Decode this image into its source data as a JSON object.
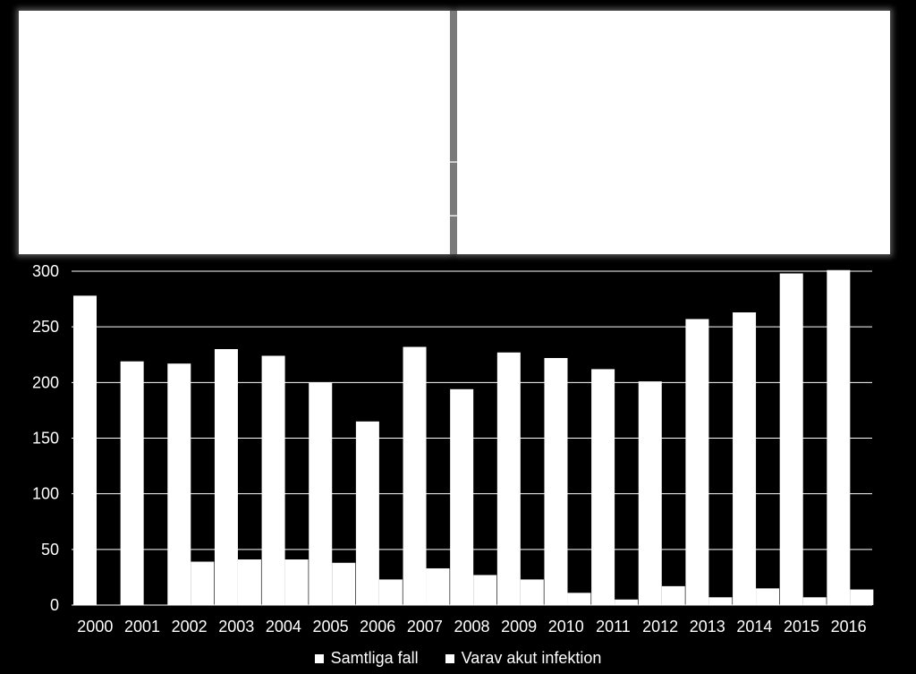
{
  "chart_data": {
    "type": "bar",
    "title": "",
    "xlabel": "",
    "ylabel": "",
    "ylim": [
      0,
      300
    ],
    "yticks": [
      "0",
      "50",
      "100",
      "150",
      "200",
      "250",
      "300"
    ],
    "grid": true,
    "legend_position": "bottom",
    "categories": [
      "2000",
      "2001",
      "2002",
      "2003",
      "2004",
      "2005",
      "2006",
      "2007",
      "2008",
      "2009",
      "2010",
      "2011",
      "2012",
      "2013",
      "2014",
      "2015",
      "2016"
    ],
    "series": [
      {
        "name": "Samtliga fall",
        "color": "#ffffff",
        "values": [
          278,
          219,
          217,
          230,
          224,
          200,
          165,
          232,
          194,
          227,
          222,
          212,
          201,
          257,
          263,
          298,
          301
        ]
      },
      {
        "name": "Varav akut infektion",
        "color": "#ffffff",
        "values": [
          0,
          0,
          39,
          41,
          41,
          38,
          23,
          33,
          27,
          23,
          11,
          5,
          17,
          7,
          15,
          7,
          14
        ]
      }
    ]
  },
  "colors": {
    "background": "#000000",
    "bars": "#ffffff",
    "panel": "#ffffff",
    "divider": "#7a7a7a"
  }
}
